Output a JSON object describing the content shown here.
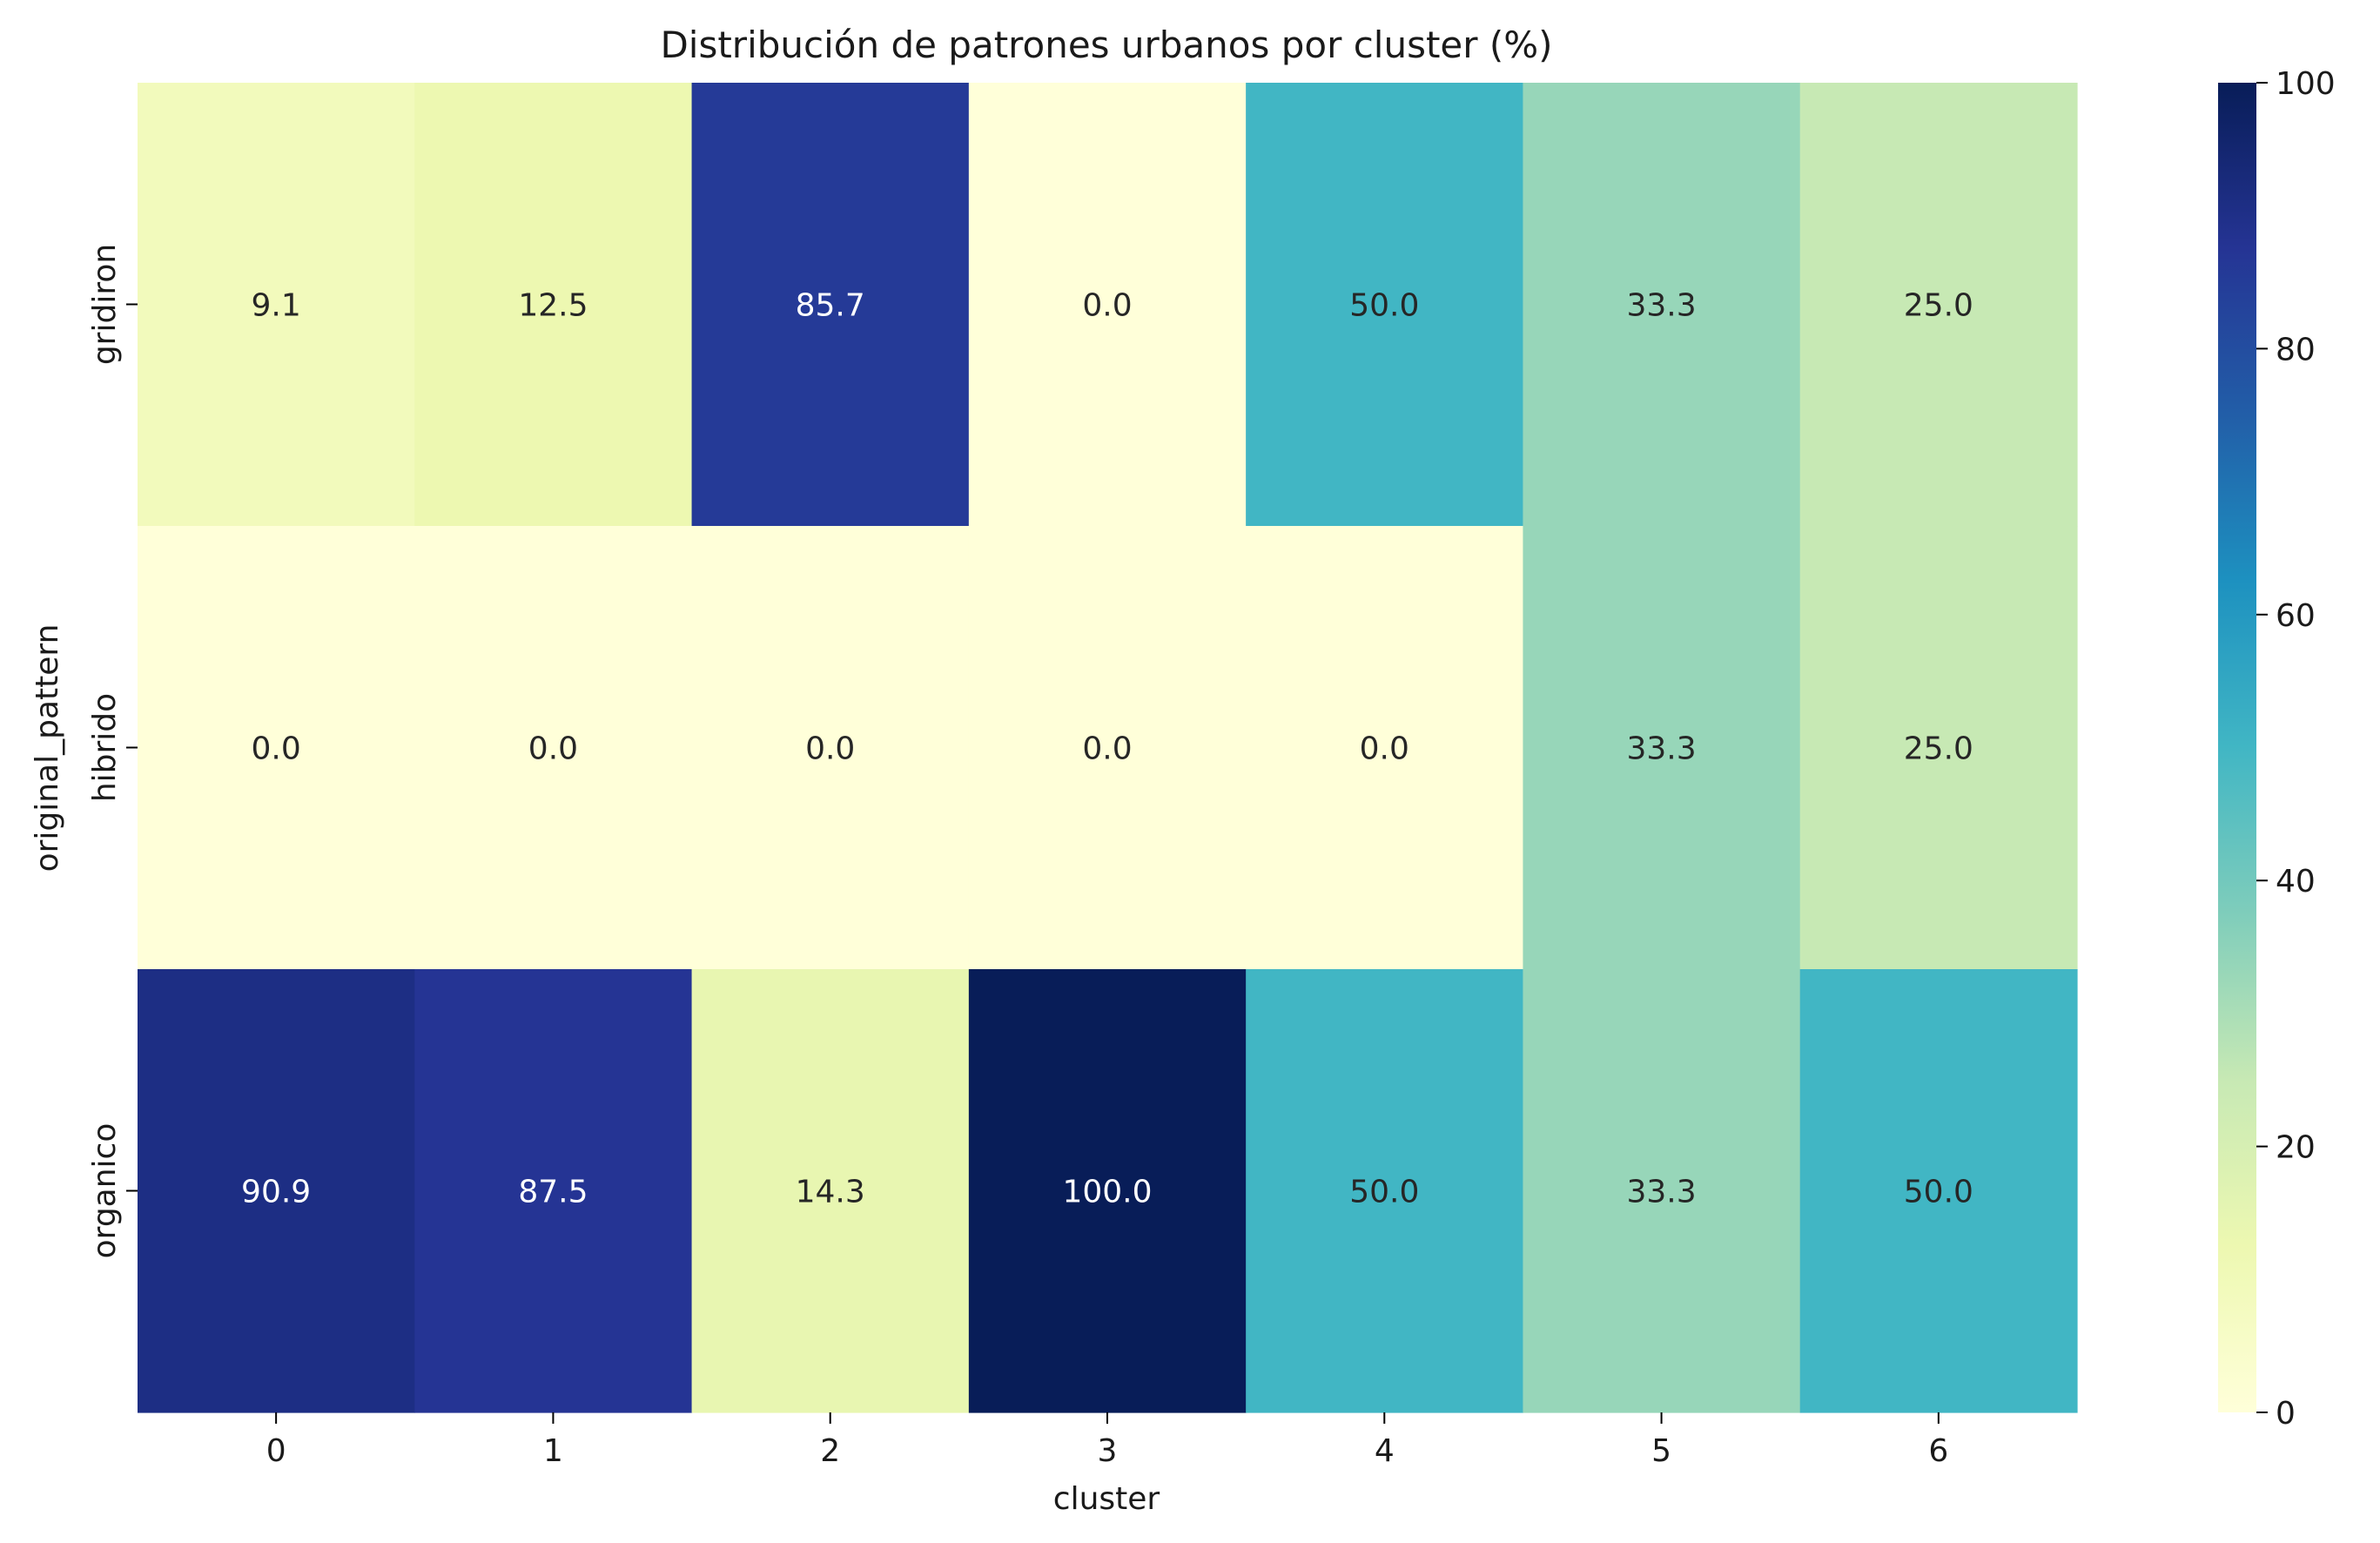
{
  "chart_data": {
    "type": "heatmap",
    "title": "Distribución de patrones urbanos por cluster (%)",
    "xlabel": "cluster",
    "ylabel": "original_pattern",
    "x_categories": [
      "0",
      "1",
      "2",
      "3",
      "4",
      "5",
      "6"
    ],
    "y_categories": [
      "gridiron",
      "hibrido",
      "organico"
    ],
    "values": [
      [
        9.1,
        12.5,
        85.7,
        0.0,
        50.0,
        33.3,
        25.0
      ],
      [
        0.0,
        0.0,
        0.0,
        0.0,
        0.0,
        33.3,
        25.0
      ],
      [
        90.9,
        87.5,
        14.3,
        100.0,
        50.0,
        33.3,
        50.0
      ]
    ],
    "value_format": "0.1f",
    "colormap": "YlGnBu",
    "colorbar": {
      "range": [
        0,
        100
      ],
      "ticks": [
        0,
        20,
        40,
        60,
        80,
        100
      ]
    },
    "grid": false
  }
}
